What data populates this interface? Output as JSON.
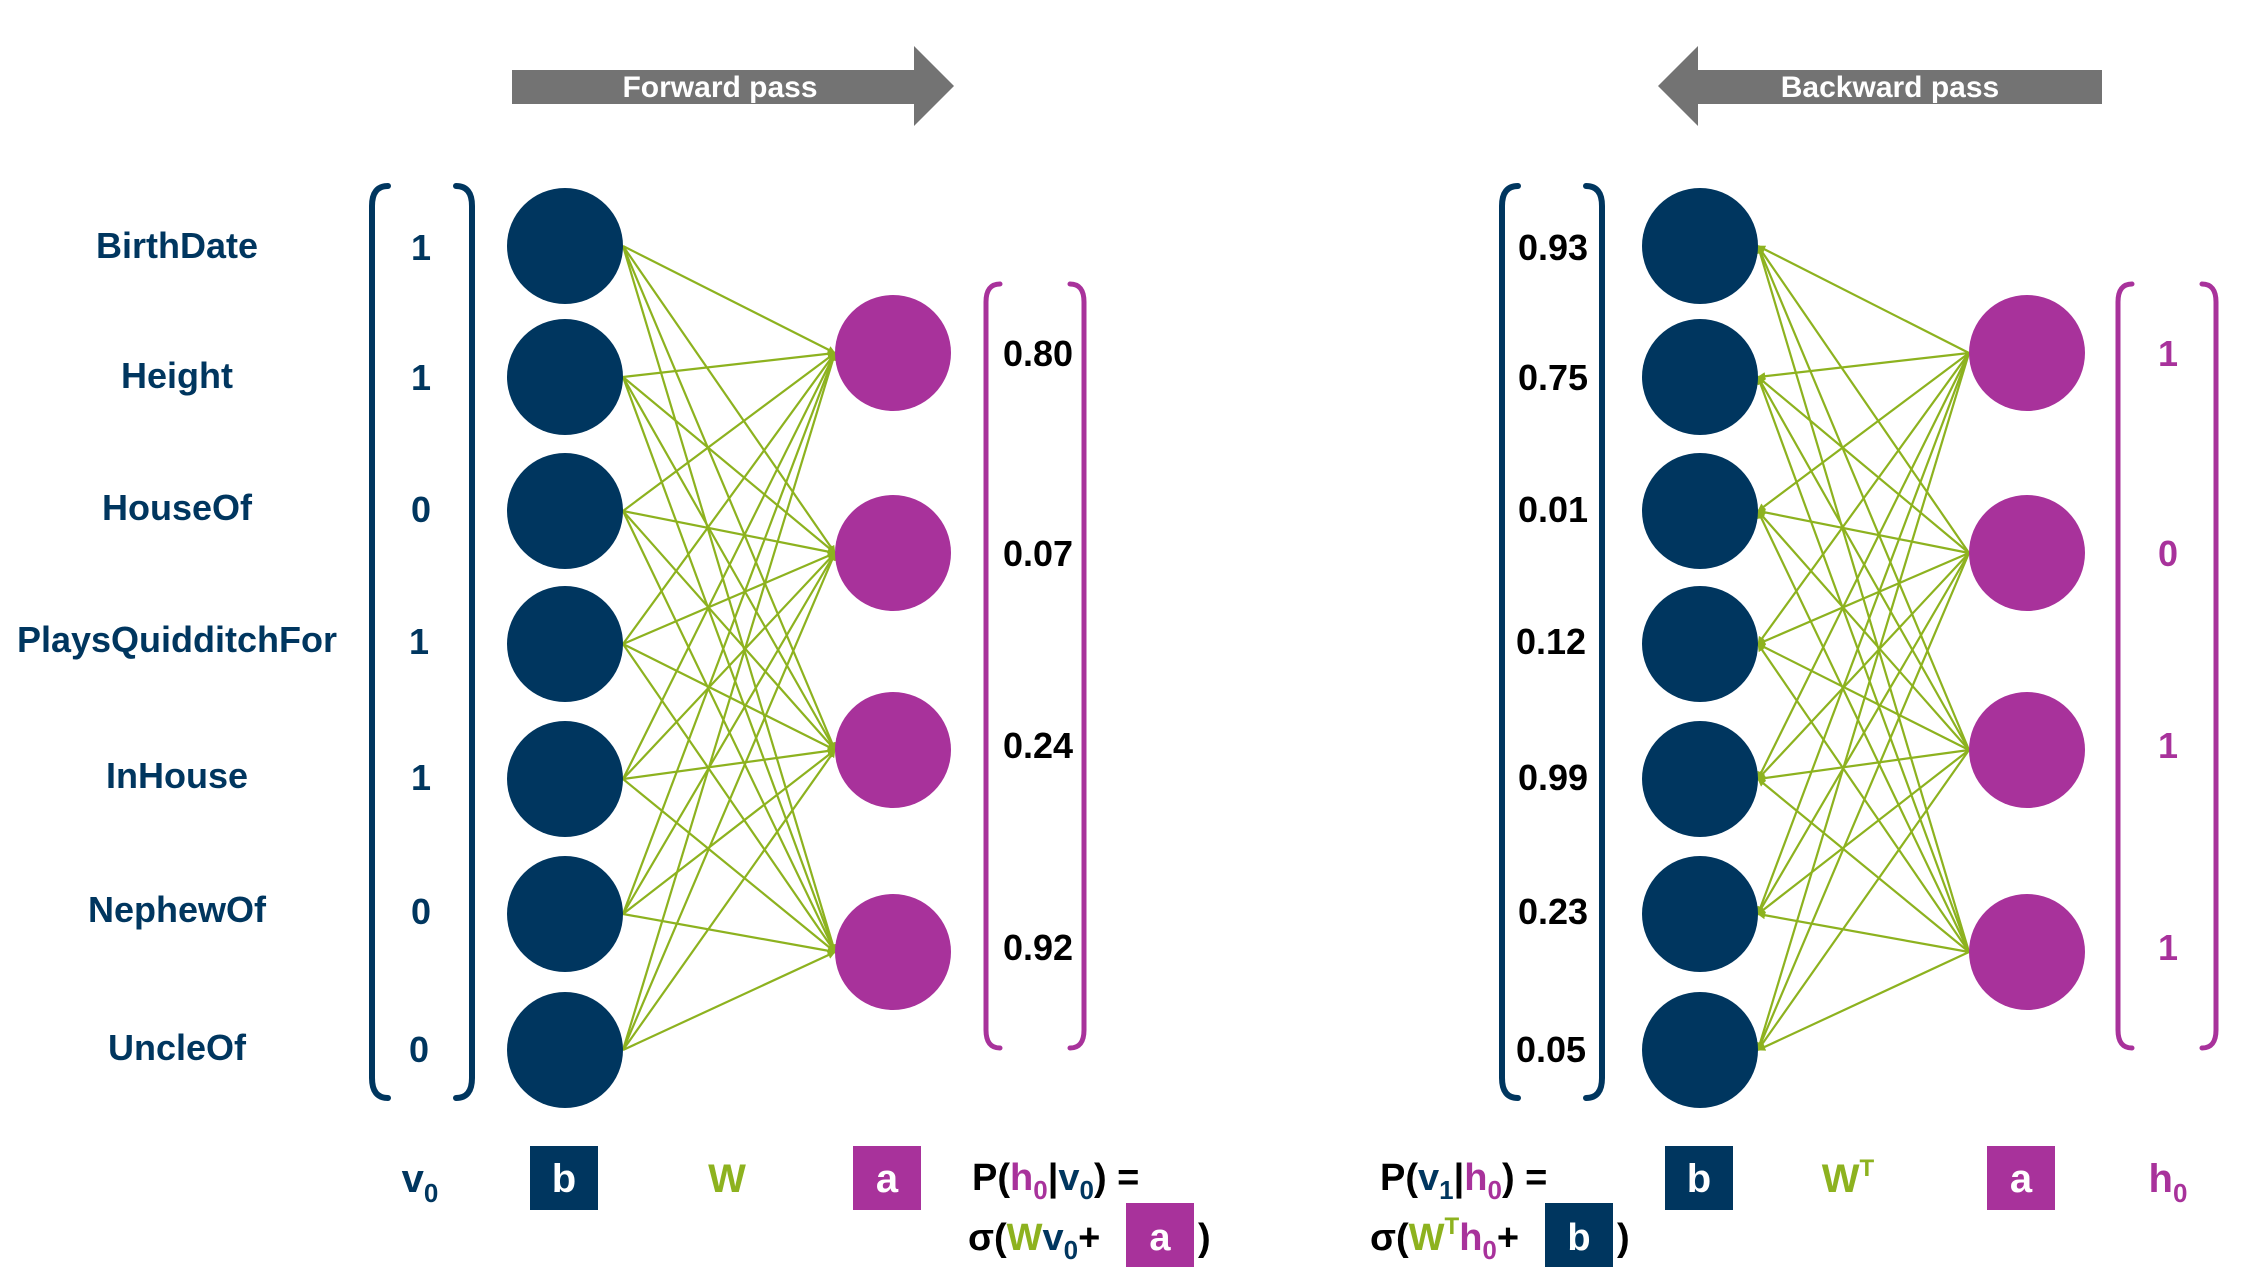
{
  "colors": {
    "visible": "#00365f",
    "hidden": "#a8329b",
    "weights": "#8db21f",
    "arrow": "#737373",
    "text": "#000000",
    "white": "#ffffff"
  },
  "forward": {
    "arrow_label": "Forward pass",
    "features": [
      "BirthDate",
      "Height",
      "HouseOf",
      "PlaysQuidditchFor",
      "InHouse",
      "NephewOf",
      "UncleOf"
    ],
    "v0_values": [
      "1",
      "1",
      "0",
      "1",
      "1",
      "0",
      "0"
    ],
    "h_probs": [
      "0.80",
      "0.07",
      "0.24",
      "0.92"
    ],
    "legend": {
      "v_main": "v",
      "v_sub": "0",
      "b": "b",
      "w": "W",
      "a": "a"
    },
    "formula": {
      "line1": {
        "p": "P(",
        "h": "h",
        "h_sub": "0",
        "bar": "|",
        "v": "v",
        "v_sub": "0",
        "end": ") ="
      },
      "line2": {
        "sigma": "σ(",
        "w": "W",
        "v": "v",
        "v_sub": "0",
        "plus": "+",
        "a": "a",
        "close": ")"
      }
    }
  },
  "backward": {
    "arrow_label": "Backward pass",
    "v1_probs": [
      "0.93",
      "0.75",
      "0.01",
      "0.12",
      "0.99",
      "0.23",
      "0.05"
    ],
    "h0_values": [
      "1",
      "0",
      "1",
      "1"
    ],
    "legend": {
      "b": "b",
      "w": "W",
      "w_sup": "T",
      "a": "a",
      "h_main": "h",
      "h_sub": "0"
    },
    "formula": {
      "line1": {
        "p": "P(",
        "v": "v",
        "v_sub": "1",
        "bar": "|",
        "h": "h",
        "h_sub": "0",
        "end": ") ="
      },
      "line2": {
        "sigma": "σ(",
        "w": "W",
        "w_sup": "T",
        "h": "h",
        "h_sub": "0",
        "plus": "+",
        "b": "b",
        "close": ")"
      }
    }
  }
}
